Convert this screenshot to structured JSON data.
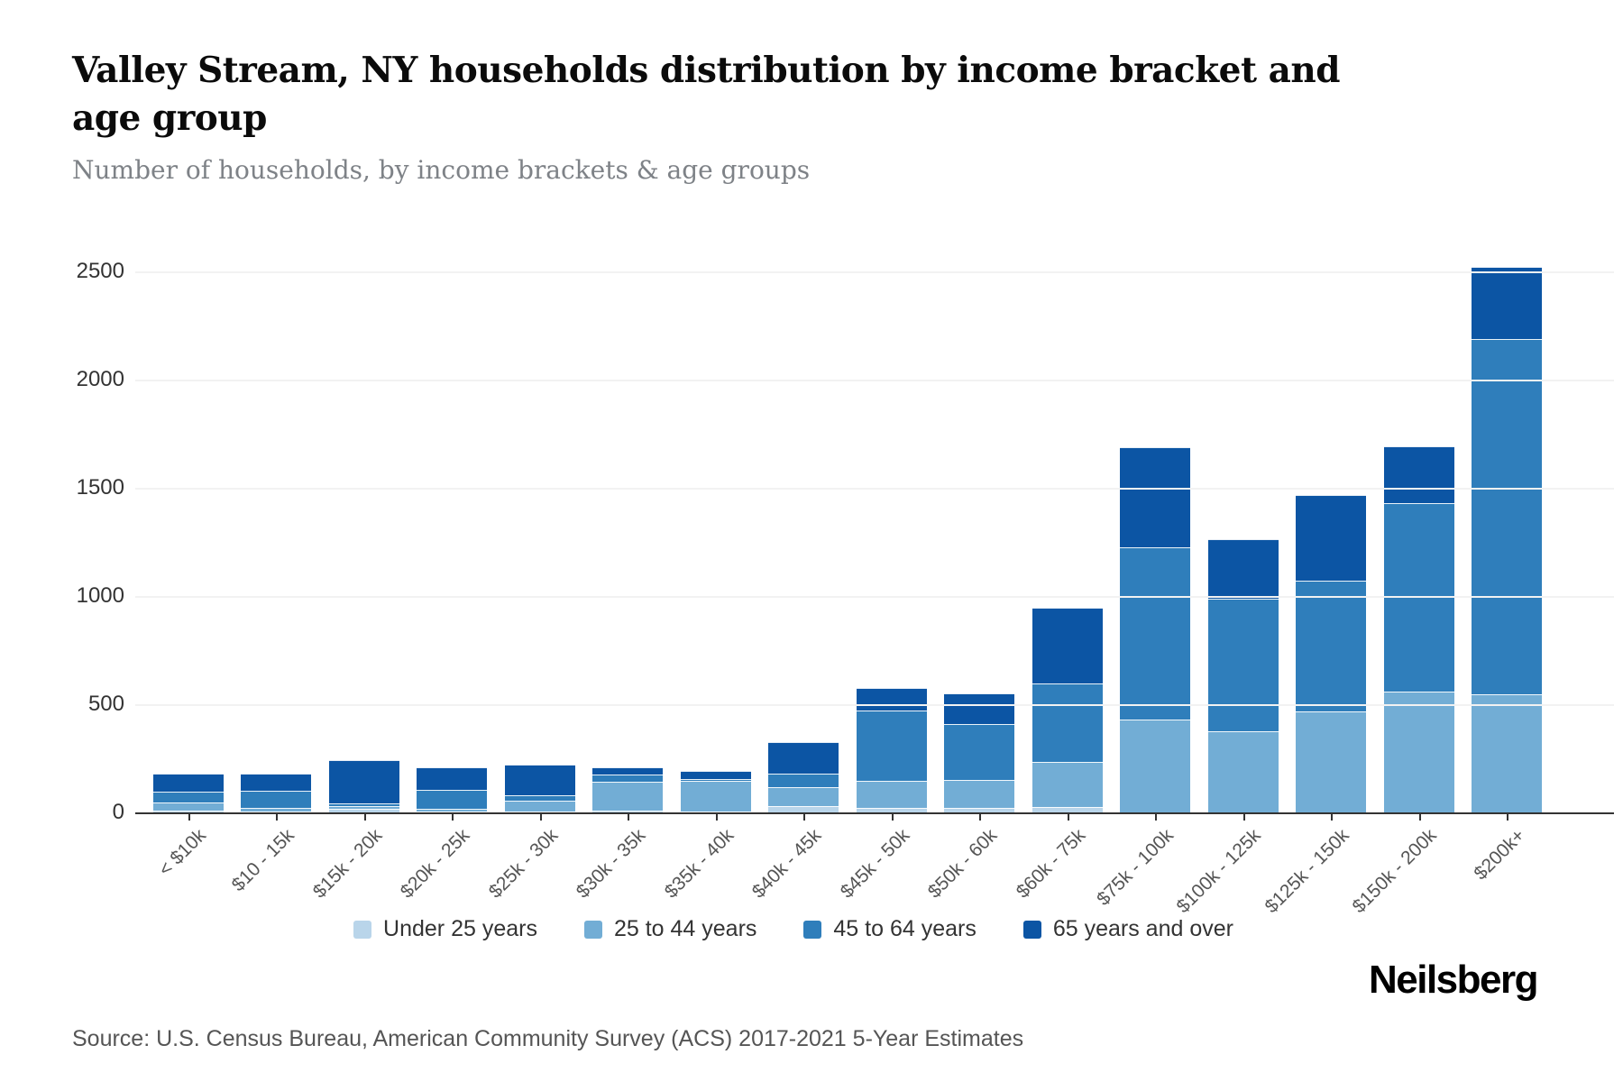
{
  "header": {
    "title": "Valley Stream, NY households distribution by income bracket and age group",
    "subtitle": "Number of households, by income brackets & age groups"
  },
  "chart_data": {
    "type": "bar",
    "stacked": true,
    "title": "Valley Stream, NY households distribution by income bracket and age group",
    "subtitle": "Number of households, by income brackets & age groups",
    "categories": [
      "< $10k",
      "$10 - 15k",
      "$15k - 20k",
      "$20k - 25k",
      "$25k - 30k",
      "$30k - 35k",
      "$35k - 40k",
      "$40k - 45k",
      "$45k - 50k",
      "$50k - 60k",
      "$60k - 75k",
      "$75k - 100k",
      "$100k - 125k",
      "$125k - 150k",
      "$150k - 200k",
      "$200k+"
    ],
    "series": [
      {
        "name": "Under 25 years",
        "color": "#b9d5ea",
        "values": [
          10,
          5,
          15,
          5,
          5,
          10,
          5,
          30,
          20,
          20,
          25,
          0,
          0,
          0,
          0,
          0
        ]
      },
      {
        "name": "25 to 44 years",
        "color": "#72add5",
        "values": [
          35,
          15,
          15,
          10,
          50,
          130,
          140,
          85,
          125,
          130,
          210,
          430,
          375,
          465,
          560,
          545
        ]
      },
      {
        "name": "45 to 64 years",
        "color": "#2f7ebb",
        "values": [
          50,
          80,
          10,
          90,
          25,
          35,
          10,
          65,
          325,
          260,
          360,
          795,
          610,
          605,
          870,
          1640
        ]
      },
      {
        "name": "65 years and over",
        "color": "#0c55a4",
        "values": [
          85,
          80,
          200,
          105,
          140,
          35,
          35,
          145,
          105,
          140,
          350,
          460,
          275,
          395,
          260,
          335
        ]
      }
    ],
    "totals": [
      180,
      180,
      240,
      210,
      220,
      210,
      190,
      325,
      575,
      550,
      945,
      1685,
      1260,
      1465,
      1690,
      2520
    ],
    "xlabel": "",
    "ylabel": "",
    "yticks": [
      0,
      500,
      1000,
      1500,
      2000,
      2500
    ],
    "ylim": [
      0,
      2690
    ],
    "grid": true,
    "legend_position": "bottom"
  },
  "footer": {
    "source": "Source: U.S. Census Bureau, American Community Survey (ACS) 2017-2021 5-Year Estimates",
    "brand": "Neilsberg"
  }
}
